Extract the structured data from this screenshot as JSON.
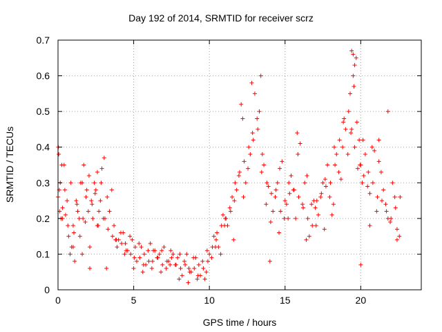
{
  "chart_data": {
    "type": "scatter",
    "title": "Day 192 of 2014, SRMTID for receiver scrz",
    "xlabel": "GPS time / hours",
    "ylabel": "SRMTID / TECUs",
    "xlim": [
      0,
      24
    ],
    "ylim": [
      0,
      0.7
    ],
    "x_ticks": [
      0,
      5,
      10,
      15,
      20
    ],
    "y_ticks": [
      0,
      0.1,
      0.2,
      0.3,
      0.4,
      0.5,
      0.6,
      0.7
    ],
    "x_tick_labels": [
      "0",
      "5",
      "10",
      "15",
      "20"
    ],
    "y_tick_labels": [
      "0",
      "0.1",
      "0.2",
      "0.3",
      "0.4",
      "0.5",
      "0.6",
      "0.7"
    ],
    "grid": true,
    "marker": "+",
    "color": "#ff0000",
    "series": [
      {
        "name": "SRMTID",
        "x": [
          0.0,
          0.1,
          0.2,
          0.3,
          0.5,
          0.7,
          0.8,
          1.0,
          1.2,
          1.4,
          1.6,
          1.8,
          2.0,
          2.2,
          2.4,
          2.6,
          2.8,
          3.0,
          3.3,
          3.6,
          3.9,
          4.2,
          4.5,
          4.8,
          5.1,
          5.4,
          5.7,
          6.0,
          6.3,
          6.6,
          6.9,
          7.2,
          7.5,
          7.8,
          8.1,
          8.4,
          8.7,
          9.0,
          9.3,
          9.6,
          9.9,
          10.2,
          10.5,
          10.8,
          11.1,
          11.4,
          11.7,
          12.0,
          12.3,
          12.6,
          12.9,
          13.2,
          13.5,
          13.8,
          14.1,
          14.4,
          14.7,
          15.0,
          15.3,
          15.6,
          15.9,
          16.2,
          16.5,
          16.8,
          17.1,
          17.4,
          17.7,
          18.0,
          18.3,
          18.6,
          18.9,
          19.2,
          19.4,
          19.6,
          19.8,
          20.0,
          20.2,
          20.5,
          20.8,
          21.1,
          21.4,
          21.7,
          22.0,
          22.3,
          22.6,
          0.05,
          0.15,
          0.4,
          0.6,
          0.9,
          1.1,
          1.3,
          1.5,
          1.7,
          1.9,
          2.1,
          2.3,
          2.5,
          2.7,
          2.9,
          3.1,
          3.4,
          3.7,
          4.0,
          4.3,
          4.6,
          4.9,
          5.2,
          5.5,
          5.8,
          6.1,
          6.4,
          6.7,
          7.0,
          7.3,
          7.6,
          7.9,
          8.2,
          8.5,
          8.8,
          9.1,
          9.4,
          9.7,
          10.0,
          10.3,
          10.6,
          10.9,
          11.2,
          11.5,
          11.8,
          12.1,
          12.4,
          12.7,
          13.0,
          13.3,
          13.6,
          13.9,
          14.2,
          14.5,
          14.8,
          15.1,
          15.4,
          15.7,
          16.0,
          16.3,
          16.6,
          16.9,
          17.2,
          17.5,
          17.8,
          18.1,
          18.4,
          18.7,
          19.0,
          19.3,
          19.5,
          19.7,
          19.9,
          20.1,
          20.3,
          20.6,
          20.9,
          21.2,
          21.5,
          21.8,
          22.1,
          22.4,
          0.08,
          0.25,
          0.45,
          0.65,
          0.85,
          1.05,
          1.25,
          1.45,
          1.65,
          1.85,
          2.05,
          2.25,
          2.45,
          2.65,
          2.85,
          3.05,
          3.25,
          3.55,
          3.85,
          4.15,
          4.45,
          4.75,
          5.05,
          5.35,
          5.65,
          5.95,
          6.25,
          6.55,
          6.85,
          7.15,
          7.45,
          7.75,
          8.05,
          8.35,
          8.65,
          8.95,
          9.25,
          9.55,
          9.85,
          10.15,
          10.45,
          10.75,
          11.05,
          11.35,
          11.65,
          11.95,
          12.25,
          12.55,
          12.85,
          13.15,
          13.45,
          13.75,
          14.05,
          14.35,
          14.65,
          14.95,
          15.25,
          15.55,
          15.85,
          16.15,
          16.45,
          16.75,
          17.05,
          17.35,
          17.65,
          17.95,
          18.25,
          18.55,
          18.85,
          19.15,
          19.35,
          19.55,
          19.75,
          19.95,
          20.15,
          20.45,
          20.75,
          21.05,
          21.35,
          21.65,
          21.95,
          22.25,
          22.55,
          0.02,
          0.3,
          1.0,
          1.6,
          2.1,
          2.6,
          3.2,
          3.8,
          4.4,
          5.0,
          5.6,
          6.2,
          6.8,
          7.4,
          8.0,
          8.6,
          9.2,
          9.8,
          10.4,
          11.0,
          11.6,
          12.2,
          12.8,
          13.4,
          14.0,
          14.6,
          15.2,
          15.8,
          16.4,
          17.0,
          17.6,
          18.2,
          18.8,
          19.4,
          19.5,
          19.6,
          20.0,
          20.6,
          21.2,
          21.8,
          22.4
        ],
        "y": [
          0.26,
          0.22,
          0.2,
          0.23,
          0.21,
          0.15,
          0.1,
          0.18,
          0.25,
          0.2,
          0.3,
          0.19,
          0.22,
          0.25,
          0.3,
          0.33,
          0.25,
          0.2,
          0.17,
          0.15,
          0.12,
          0.13,
          0.11,
          0.1,
          0.12,
          0.09,
          0.1,
          0.08,
          0.11,
          0.09,
          0.07,
          0.08,
          0.09,
          0.07,
          0.06,
          0.07,
          0.05,
          0.06,
          0.07,
          0.06,
          0.08,
          0.12,
          0.16,
          0.18,
          0.2,
          0.22,
          0.3,
          0.33,
          0.36,
          0.4,
          0.42,
          0.45,
          0.38,
          0.3,
          0.27,
          0.28,
          0.22,
          0.25,
          0.27,
          0.28,
          0.26,
          0.23,
          0.2,
          0.18,
          0.25,
          0.27,
          0.29,
          0.3,
          0.35,
          0.42,
          0.48,
          0.5,
          0.45,
          0.4,
          0.34,
          0.35,
          0.32,
          0.33,
          0.3,
          0.26,
          0.25,
          0.22,
          0.2,
          0.23,
          0.26,
          0.38,
          0.3,
          0.35,
          0.25,
          0.12,
          0.08,
          0.22,
          0.3,
          0.35,
          0.28,
          0.12,
          0.2,
          0.28,
          0.22,
          0.34,
          0.2,
          0.22,
          0.18,
          0.14,
          0.16,
          0.11,
          0.14,
          0.08,
          0.12,
          0.07,
          0.13,
          0.11,
          0.1,
          0.12,
          0.08,
          0.1,
          0.09,
          0.04,
          0.1,
          0.05,
          0.09,
          0.04,
          0.03,
          0.1,
          0.15,
          0.12,
          0.21,
          0.18,
          0.26,
          0.28,
          0.52,
          0.3,
          0.38,
          0.55,
          0.5,
          0.35,
          0.29,
          0.22,
          0.3,
          0.36,
          0.24,
          0.32,
          0.2,
          0.41,
          0.3,
          0.15,
          0.25,
          0.21,
          0.3,
          0.35,
          0.21,
          0.38,
          0.31,
          0.45,
          0.55,
          0.6,
          0.65,
          0.42,
          0.3,
          0.38,
          0.27,
          0.39,
          0.36,
          0.28,
          0.2,
          0.3,
          0.17,
          0.28,
          0.35,
          0.28,
          0.18,
          0.3,
          0.16,
          0.24,
          0.15,
          0.2,
          0.26,
          0.32,
          0.24,
          0.27,
          0.18,
          0.3,
          0.37,
          0.26,
          0.28,
          0.14,
          0.16,
          0.13,
          0.15,
          0.09,
          0.13,
          0.07,
          0.11,
          0.08,
          0.09,
          0.11,
          0.06,
          0.11,
          0.07,
          0.1,
          0.08,
          0.06,
          0.09,
          0.04,
          0.08,
          0.11,
          0.09,
          0.14,
          0.1,
          0.2,
          0.23,
          0.25,
          0.32,
          0.26,
          0.34,
          0.44,
          0.48,
          0.33,
          0.24,
          0.19,
          0.26,
          0.34,
          0.2,
          0.3,
          0.28,
          0.38,
          0.24,
          0.32,
          0.24,
          0.18,
          0.26,
          0.31,
          0.26,
          0.4,
          0.33,
          0.47,
          0.38,
          0.44,
          0.57,
          0.47,
          0.35,
          0.42,
          0.29,
          0.4,
          0.22,
          0.33,
          0.24,
          0.19,
          0.26,
          0.15,
          0.4,
          0.2,
          0.12,
          0.1,
          0.06,
          0.18,
          0.06,
          0.14,
          0.1,
          0.06,
          0.05,
          0.06,
          0.05,
          0.07,
          0.03,
          0.02,
          0.03,
          0.05,
          0.12,
          0.18,
          0.14,
          0.48,
          0.58,
          0.6,
          0.08,
          0.16,
          0.2,
          0.44,
          0.14,
          0.23,
          0.17,
          0.24,
          0.4,
          0.67,
          0.66,
          0.63,
          0.07,
          0.18,
          0.42,
          0.5,
          0.14
        ]
      }
    ]
  }
}
